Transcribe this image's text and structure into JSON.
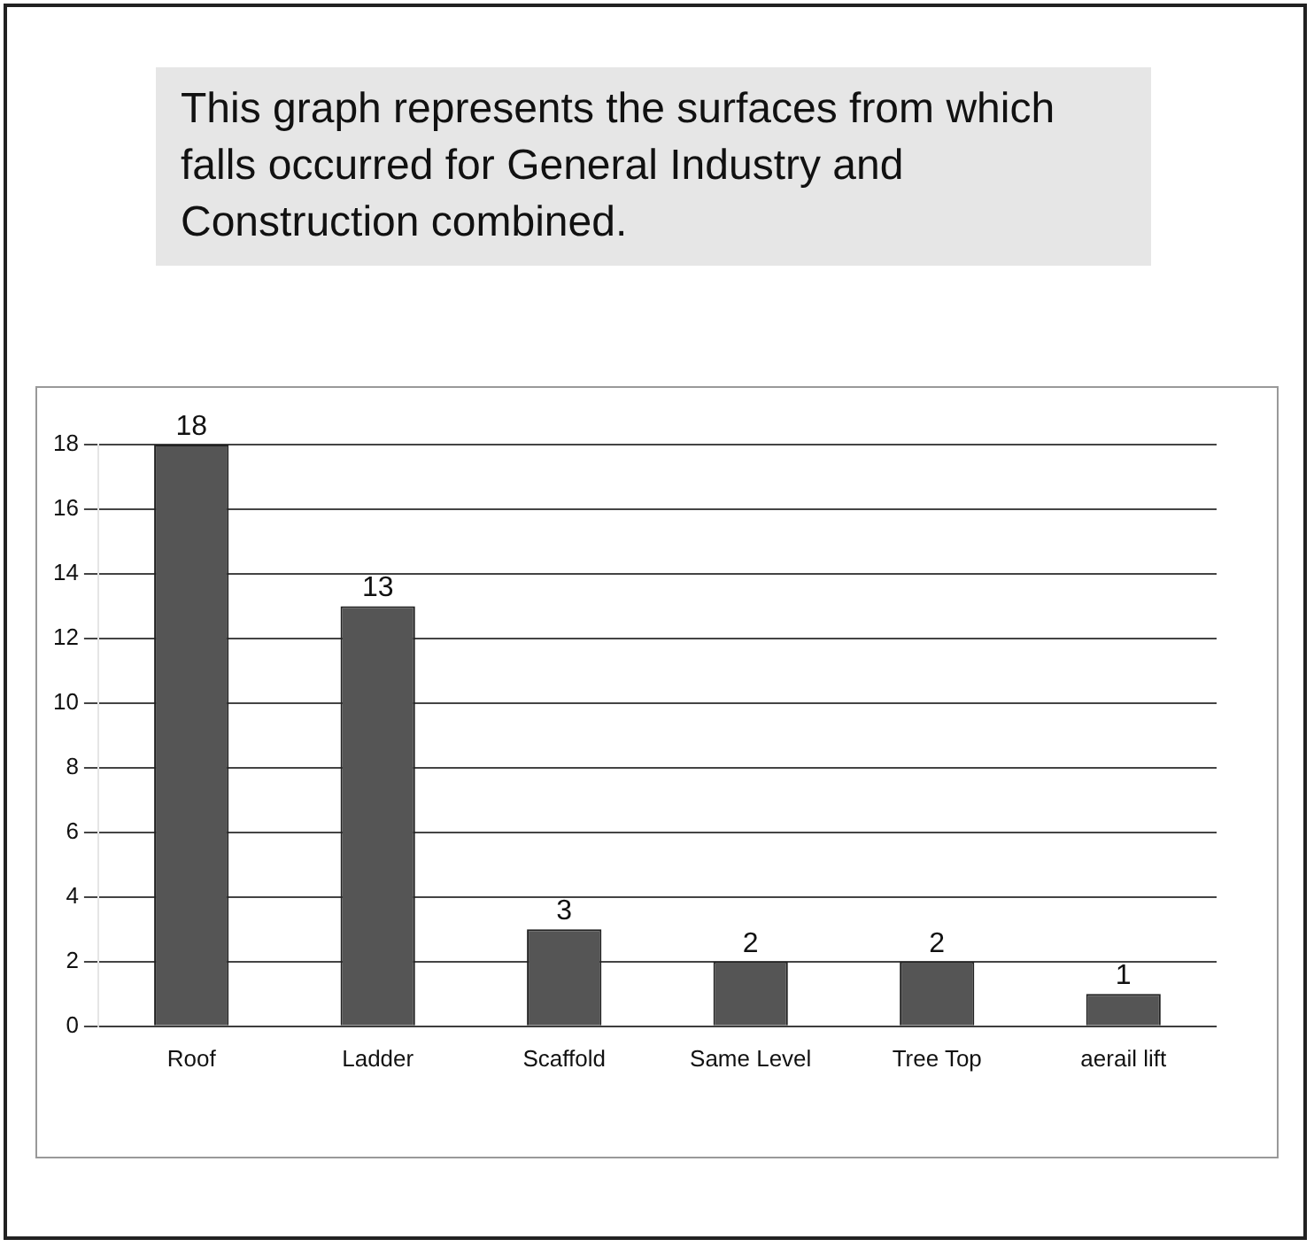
{
  "chart_data": {
    "type": "bar",
    "title": "This graph represents the surfaces from which falls occurred for General Industry and Construction combined.",
    "categories": [
      "Roof",
      "Ladder",
      "Scaffold",
      "Same Level",
      "Tree Top",
      "aerail lift"
    ],
    "values": [
      18,
      13,
      3,
      2,
      2,
      1
    ],
    "color": "#555555",
    "ylim": [
      0,
      18
    ],
    "yticks": [
      0,
      2,
      4,
      6,
      8,
      10,
      12,
      14,
      16,
      18
    ],
    "grid": "y",
    "data_labels": true
  }
}
